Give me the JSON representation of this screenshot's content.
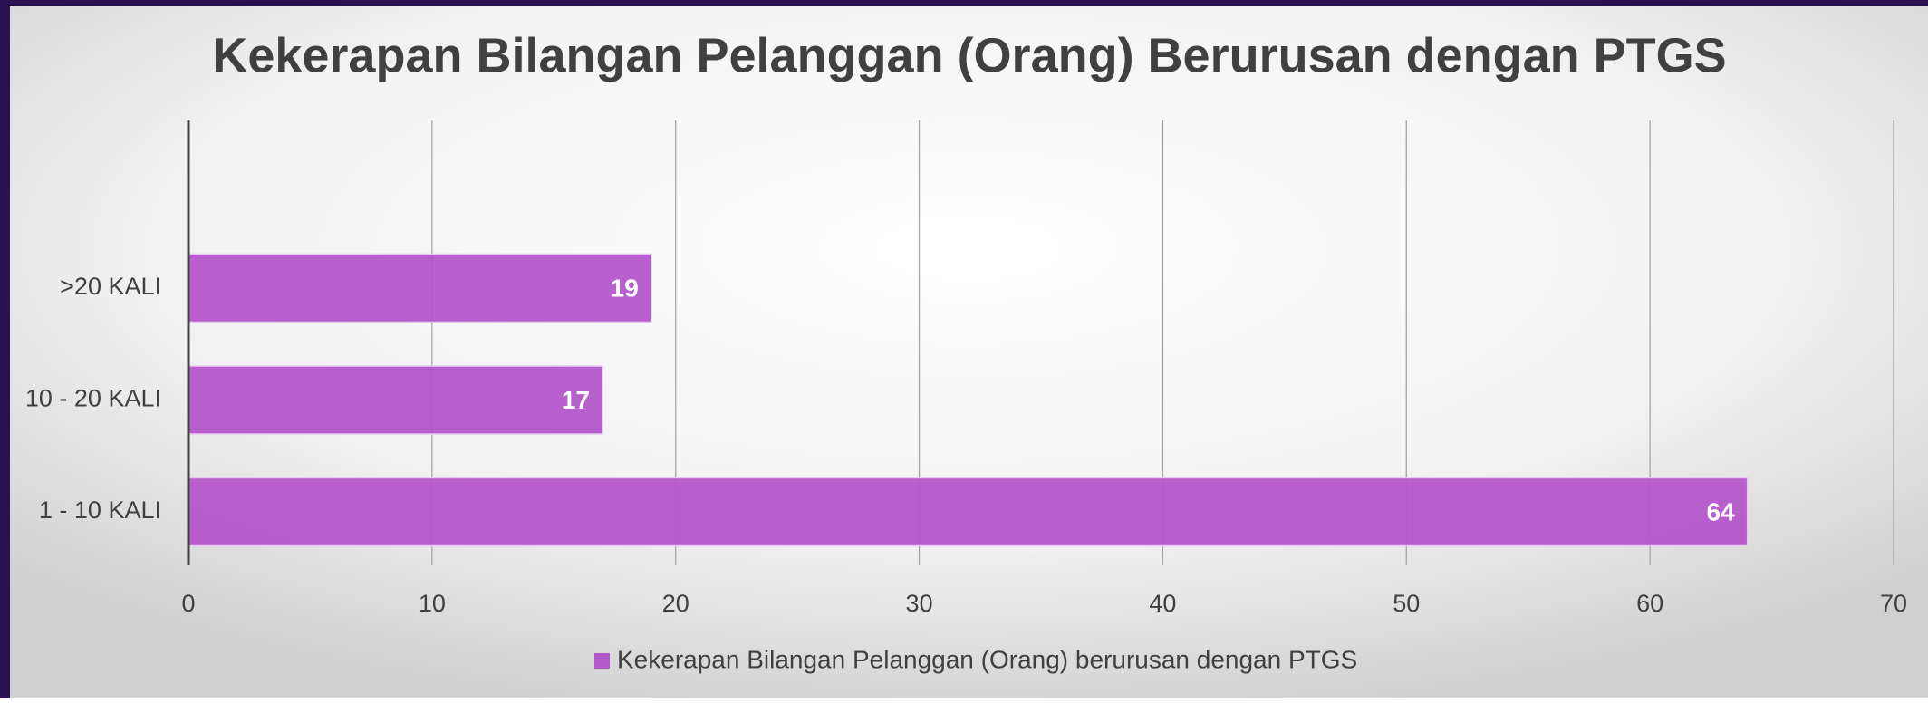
{
  "chart_data": {
    "type": "bar",
    "orientation": "horizontal",
    "title": "Kekerapan Bilangan Pelanggan (Orang) Berurusan dengan PTGS",
    "categories": [
      "1 - 10 KALI",
      "10 - 20 KALI",
      ">20 KALI"
    ],
    "series": [
      {
        "name": "Kekerapan Bilangan Pelanggan (Orang) berurusan dengan PTGS",
        "color": "#b558cc",
        "values": [
          64,
          17,
          19
        ]
      }
    ],
    "xlim": [
      0,
      70
    ],
    "xticks": [
      0,
      10,
      20,
      30,
      40,
      50,
      60,
      70
    ],
    "grid": true,
    "legend": "bottom"
  }
}
